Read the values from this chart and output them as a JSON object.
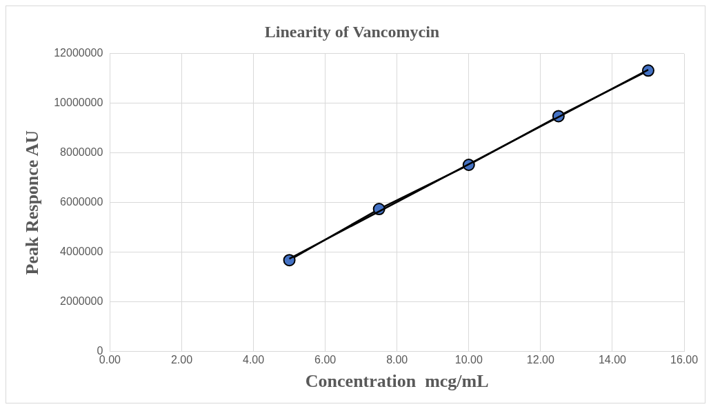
{
  "chart_data": {
    "type": "line",
    "title": "Linearity of Vancomycin",
    "xlabel": "Concentration  mcg/mL",
    "ylabel": "Peak Responce AU",
    "series": [
      {
        "color": "#4472c4",
        "x": [
          5,
          7.5,
          10,
          12.5,
          15
        ],
        "values": [
          3680000,
          5740000,
          7520000,
          9480000,
          11320000
        ]
      },
      {
        "color": "#000000",
        "marker": "none",
        "x": [
          5,
          15
        ],
        "values": [
          3740000,
          11350000
        ]
      }
    ],
    "xlim": [
      0,
      16
    ],
    "xticks": [
      {
        "value": 0,
        "label": "0.00"
      },
      {
        "value": 2,
        "label": "2.00"
      },
      {
        "value": 4,
        "label": "4.00"
      },
      {
        "value": 6,
        "label": "6.00"
      },
      {
        "value": 8,
        "label": "8.00"
      },
      {
        "value": 10,
        "label": "10.00"
      },
      {
        "value": 12,
        "label": "12.00"
      },
      {
        "value": 14,
        "label": "14.00"
      },
      {
        "value": 16,
        "label": "16.00"
      }
    ],
    "ylim": [
      0,
      12000000
    ],
    "yticks": [
      0,
      2000000,
      4000000,
      6000000,
      8000000,
      10000000,
      12000000
    ],
    "grid": true,
    "legend": false,
    "marker": "circle",
    "line_style": "solid"
  }
}
